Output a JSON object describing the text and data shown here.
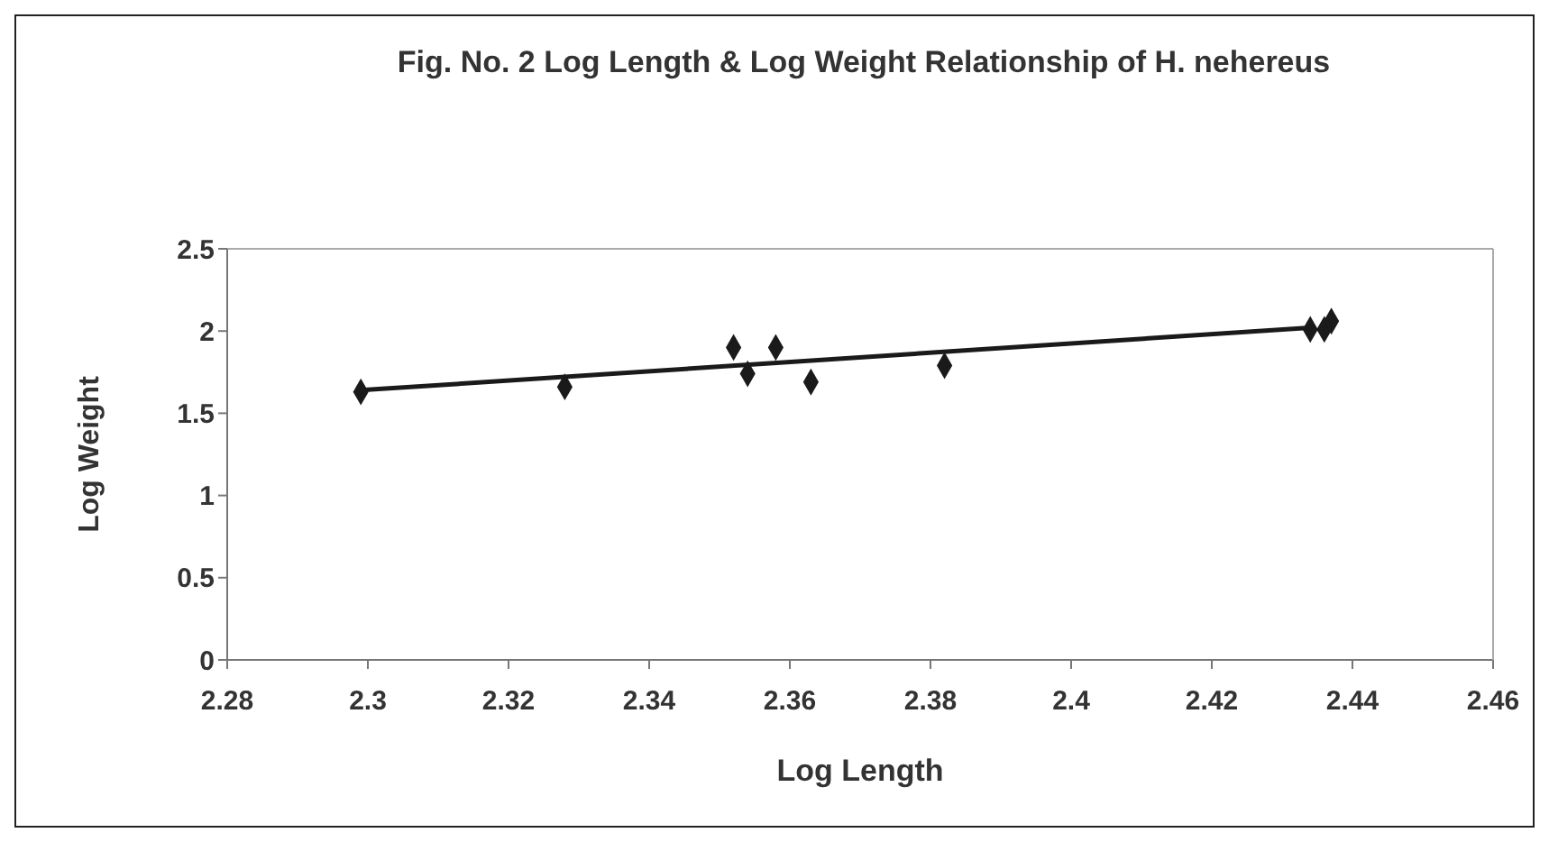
{
  "chart_data": {
    "type": "scatter",
    "title": "Fig. No. 2 Log Length & Log Weight Relationship of H. nehereus",
    "xlabel": "Log Length",
    "ylabel": "Log Weight",
    "marker": "diamond",
    "xlim": [
      2.28,
      2.46
    ],
    "xticks": [
      2.28,
      2.3,
      2.32,
      2.34,
      2.36,
      2.38,
      2.4,
      2.42,
      2.44,
      2.46
    ],
    "ylim": [
      0,
      2.5
    ],
    "yticks": [
      0,
      0.5,
      1,
      1.5,
      2,
      2.5
    ],
    "series": [
      {
        "type": "scatter",
        "color": "#1a1a1a",
        "x": [
          2.299,
          2.328,
          2.352,
          2.354,
          2.358,
          2.363,
          2.382,
          2.434,
          2.436,
          2.437
        ],
        "values": [
          1.63,
          1.66,
          1.9,
          1.74,
          1.9,
          1.69,
          1.79,
          2.01,
          2.01,
          2.06
        ]
      },
      {
        "type": "line",
        "color": "#1a1a1a",
        "marker": "none",
        "x": [
          2.299,
          2.434
        ],
        "values": [
          1.64,
          2.02
        ]
      }
    ]
  }
}
